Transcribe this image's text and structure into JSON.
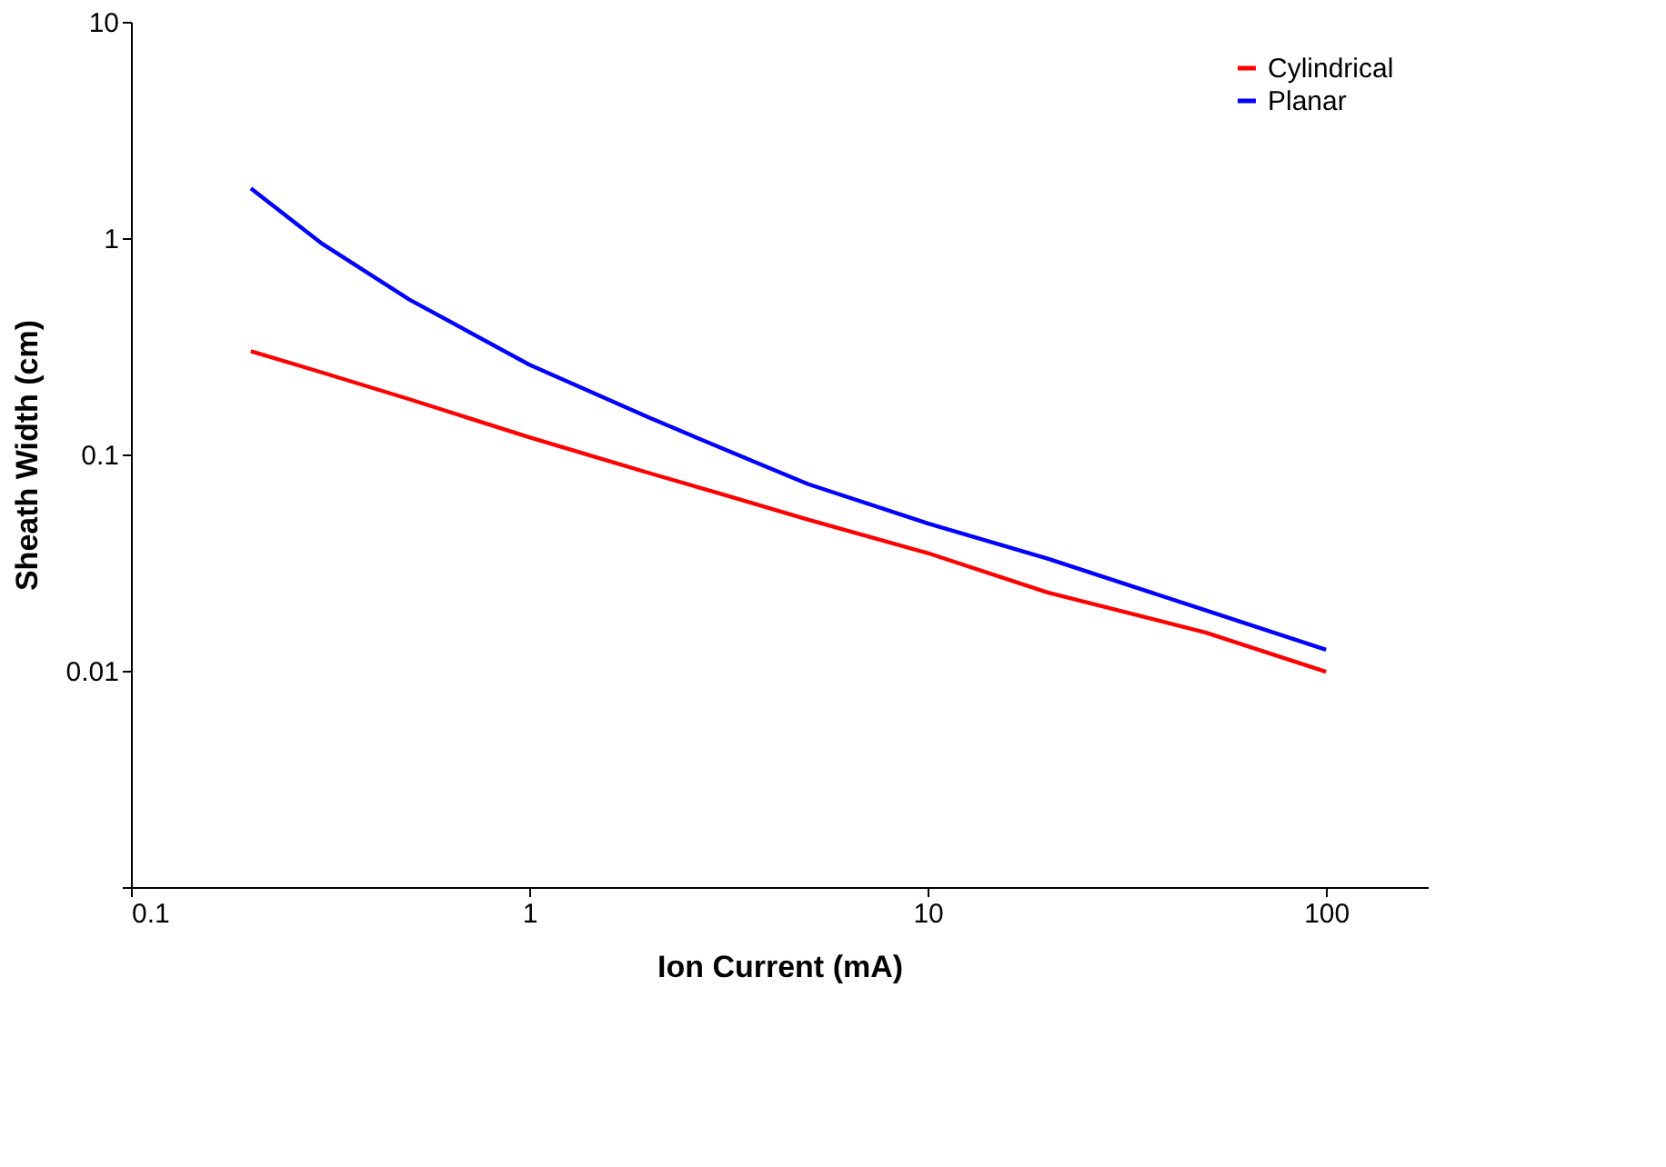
{
  "chart_data": {
    "type": "line",
    "xlabel": "Ion Current (mA)",
    "ylabel": "Sheath Width (cm)",
    "log": "xy",
    "grid": false,
    "legend": "top right",
    "marker": "none",
    "line_style": "solid",
    "xlim": [
      0.1,
      180
    ],
    "ylim": [
      0.001,
      10
    ],
    "xticks": [
      0.1,
      1,
      10,
      100
    ],
    "yticks": [
      {
        "value": 0.001,
        "label": null
      },
      0.01,
      0.1,
      1,
      10
    ],
    "series": [
      {
        "name": "Cylindrical",
        "color": "#ff0000",
        "x": [
          0.2,
          0.3,
          0.5,
          1,
          2,
          3,
          5,
          10,
          20,
          50,
          100
        ],
        "values": [
          0.3,
          0.24,
          0.18,
          0.12,
          0.082,
          0.066,
          0.05,
          0.035,
          0.023,
          0.015,
          0.0099
        ]
      },
      {
        "name": "Planar",
        "color": "#0000ff",
        "x": [
          0.2,
          0.3,
          0.5,
          1,
          2,
          3,
          5,
          10,
          20,
          50,
          100
        ],
        "values": [
          1.7,
          0.95,
          0.52,
          0.26,
          0.148,
          0.108,
          0.073,
          0.048,
          0.033,
          0.019,
          0.0125
        ]
      }
    ]
  }
}
